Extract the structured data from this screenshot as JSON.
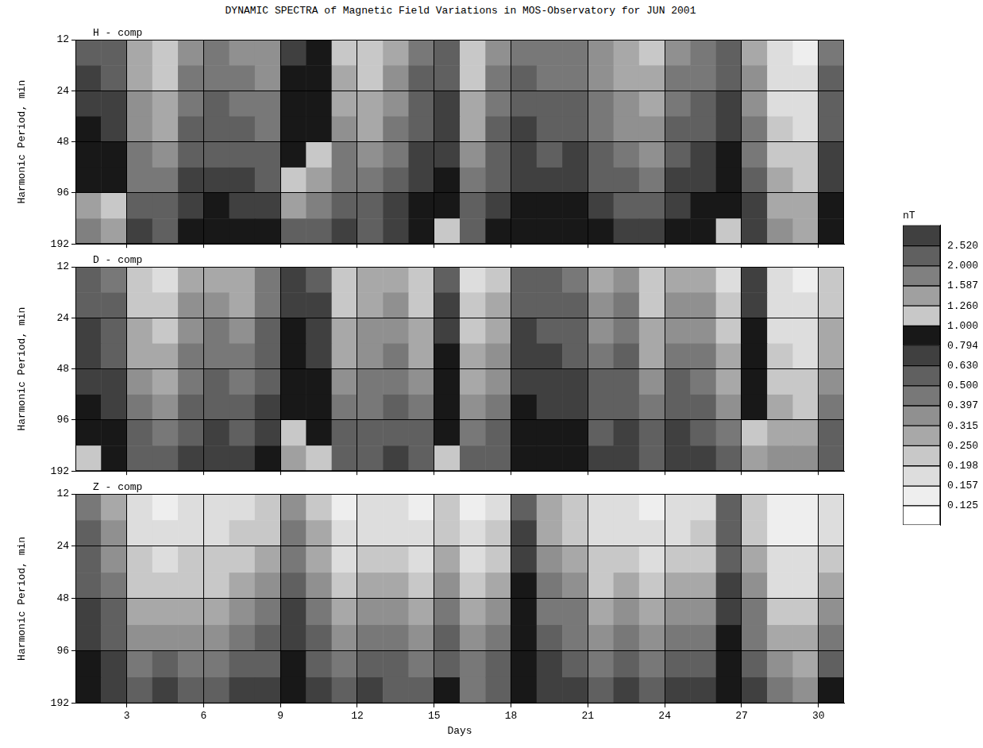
{
  "title": "DYNAMIC SPECTRA of Magnetic Field Variations in MOS-Observatory for JUN 2001",
  "chart_data": [
    {
      "type": "heatmap",
      "title": "H - comp",
      "ylabel": "Harmonic Period, min",
      "xlim": [
        1,
        31
      ],
      "xticks": [
        3,
        6,
        9,
        12,
        15,
        18,
        21,
        24,
        27,
        30
      ],
      "ylim": [
        12,
        192
      ],
      "yticks": [
        12,
        24,
        48,
        96,
        192
      ],
      "log": "y",
      "grid": true,
      "tick_labels": "y",
      "x_bins": [
        1,
        2,
        3,
        4,
        5,
        6,
        7,
        8,
        9,
        10,
        11,
        12,
        13,
        14,
        15,
        16,
        17,
        18,
        19,
        20,
        21,
        22,
        23,
        24,
        25,
        26,
        27,
        28,
        29,
        30,
        31
      ],
      "y_bins": [
        12,
        17,
        24,
        34,
        48,
        68,
        96,
        136,
        192
      ],
      "cells": [
        [
          0.62,
          0.55,
          0.25,
          0.22,
          0.35,
          0.42,
          0.38,
          0.33,
          0.72,
          0.85,
          0.24,
          0.21,
          0.3,
          0.45,
          0.52,
          0.22,
          0.36,
          0.48,
          0.4,
          0.44,
          0.32,
          0.25,
          0.23,
          0.38,
          0.42,
          0.55,
          0.3,
          0.16,
          0.15,
          0.45
        ],
        [
          0.7,
          0.6,
          0.28,
          0.24,
          0.4,
          0.45,
          0.42,
          0.36,
          0.8,
          0.9,
          0.27,
          0.23,
          0.33,
          0.5,
          0.58,
          0.24,
          0.4,
          0.52,
          0.45,
          0.48,
          0.35,
          0.28,
          0.25,
          0.42,
          0.46,
          0.6,
          0.33,
          0.17,
          0.16,
          0.5
        ],
        [
          0.78,
          0.66,
          0.32,
          0.27,
          0.46,
          0.5,
          0.47,
          0.4,
          0.88,
          0.95,
          0.3,
          0.26,
          0.37,
          0.56,
          0.64,
          0.27,
          0.45,
          0.58,
          0.5,
          0.53,
          0.4,
          0.32,
          0.28,
          0.47,
          0.52,
          0.66,
          0.37,
          0.18,
          0.17,
          0.55
        ],
        [
          0.85,
          0.72,
          0.36,
          0.3,
          0.52,
          0.56,
          0.52,
          0.45,
          0.92,
          0.98,
          0.34,
          0.3,
          0.42,
          0.62,
          0.7,
          0.3,
          0.5,
          0.64,
          0.56,
          0.6,
          0.45,
          0.36,
          0.32,
          0.52,
          0.58,
          0.72,
          0.42,
          0.2,
          0.18,
          0.6
        ],
        [
          0.92,
          0.8,
          0.42,
          0.35,
          0.58,
          0.62,
          0.6,
          0.52,
          0.96,
          1.1,
          0.4,
          0.35,
          0.48,
          0.7,
          0.78,
          0.35,
          0.56,
          0.7,
          0.62,
          0.66,
          0.52,
          0.42,
          0.38,
          0.6,
          0.65,
          0.8,
          0.48,
          0.22,
          0.2,
          0.66
        ],
        [
          0.98,
          0.88,
          0.48,
          0.42,
          0.65,
          0.7,
          0.68,
          0.6,
          1.2,
          1.3,
          0.46,
          0.42,
          0.55,
          0.78,
          0.86,
          0.42,
          0.62,
          0.78,
          0.7,
          0.74,
          0.6,
          0.5,
          0.45,
          0.68,
          0.72,
          0.88,
          0.55,
          0.26,
          0.22,
          0.72
        ],
        [
          1.4,
          1.1,
          0.58,
          0.5,
          0.74,
          0.8,
          0.76,
          0.7,
          1.5,
          1.6,
          0.55,
          0.5,
          0.64,
          0.88,
          0.95,
          0.5,
          0.72,
          0.86,
          0.8,
          0.82,
          0.7,
          0.6,
          0.55,
          0.78,
          0.82,
          0.95,
          0.65,
          0.3,
          0.26,
          0.8
        ],
        [
          1.8,
          1.5,
          0.7,
          0.62,
          0.85,
          0.92,
          0.88,
          0.82,
          2.1,
          2.3,
          0.66,
          0.6,
          0.75,
          0.96,
          1.2,
          0.6,
          0.84,
          0.95,
          0.9,
          0.92,
          0.82,
          0.7,
          0.66,
          0.88,
          0.92,
          1.1,
          0.78,
          0.38,
          0.3,
          0.9
        ]
      ]
    },
    {
      "type": "heatmap",
      "title": "D - comp",
      "ylabel": "Harmonic Period, min",
      "xlim": [
        1,
        31
      ],
      "xticks": [
        3,
        6,
        9,
        12,
        15,
        18,
        21,
        24,
        27,
        30
      ],
      "ylim": [
        12,
        192
      ],
      "yticks": [
        12,
        24,
        48,
        96,
        192
      ],
      "log": "y",
      "grid": true,
      "tick_labels": "y",
      "x_bins": [
        1,
        2,
        3,
        4,
        5,
        6,
        7,
        8,
        9,
        10,
        11,
        12,
        13,
        14,
        15,
        16,
        17,
        18,
        19,
        20,
        21,
        22,
        23,
        24,
        25,
        26,
        27,
        28,
        29,
        30,
        31
      ],
      "y_bins": [
        12,
        17,
        24,
        34,
        48,
        68,
        96,
        136,
        192
      ],
      "cells": [
        [
          0.55,
          0.45,
          0.2,
          0.18,
          0.28,
          0.3,
          0.27,
          0.4,
          0.7,
          0.6,
          0.2,
          0.25,
          0.28,
          0.2,
          0.62,
          0.18,
          0.22,
          0.55,
          0.5,
          0.45,
          0.3,
          0.35,
          0.2,
          0.3,
          0.28,
          0.18,
          0.7,
          0.16,
          0.15,
          0.2
        ],
        [
          0.6,
          0.5,
          0.22,
          0.2,
          0.32,
          0.34,
          0.3,
          0.45,
          0.76,
          0.66,
          0.22,
          0.28,
          0.32,
          0.22,
          0.7,
          0.2,
          0.25,
          0.6,
          0.55,
          0.5,
          0.34,
          0.4,
          0.22,
          0.34,
          0.32,
          0.2,
          0.78,
          0.17,
          0.16,
          0.22
        ],
        [
          0.66,
          0.56,
          0.25,
          0.22,
          0.36,
          0.4,
          0.35,
          0.5,
          0.82,
          0.72,
          0.25,
          0.32,
          0.36,
          0.25,
          0.76,
          0.22,
          0.28,
          0.66,
          0.6,
          0.56,
          0.38,
          0.45,
          0.25,
          0.38,
          0.36,
          0.22,
          0.85,
          0.18,
          0.17,
          0.25
        ],
        [
          0.72,
          0.62,
          0.3,
          0.26,
          0.42,
          0.45,
          0.4,
          0.56,
          0.88,
          0.78,
          0.3,
          0.36,
          0.42,
          0.3,
          0.82,
          0.25,
          0.32,
          0.72,
          0.66,
          0.62,
          0.44,
          0.5,
          0.3,
          0.44,
          0.42,
          0.26,
          0.9,
          0.2,
          0.18,
          0.3
        ],
        [
          0.78,
          0.68,
          0.35,
          0.3,
          0.48,
          0.5,
          0.46,
          0.62,
          0.92,
          0.84,
          0.35,
          0.42,
          0.48,
          0.35,
          0.88,
          0.3,
          0.38,
          0.78,
          0.72,
          0.68,
          0.5,
          0.56,
          0.36,
          0.5,
          0.48,
          0.3,
          0.95,
          0.22,
          0.2,
          0.35
        ],
        [
          0.85,
          0.75,
          0.42,
          0.36,
          0.55,
          0.58,
          0.52,
          0.68,
          0.96,
          0.9,
          0.42,
          0.48,
          0.55,
          0.42,
          0.92,
          0.36,
          0.45,
          0.84,
          0.78,
          0.74,
          0.56,
          0.62,
          0.42,
          0.56,
          0.55,
          0.36,
          0.98,
          0.26,
          0.22,
          0.42
        ],
        [
          0.92,
          0.82,
          0.5,
          0.45,
          0.62,
          0.65,
          0.6,
          0.75,
          1.1,
          0.95,
          0.5,
          0.55,
          0.62,
          0.5,
          0.96,
          0.42,
          0.52,
          0.9,
          0.84,
          0.8,
          0.62,
          0.7,
          0.5,
          0.64,
          0.62,
          0.45,
          1.2,
          0.3,
          0.28,
          0.5
        ],
        [
          1.2,
          0.95,
          0.6,
          0.55,
          0.7,
          0.72,
          0.68,
          0.82,
          1.3,
          1.1,
          0.6,
          0.62,
          0.7,
          0.58,
          1.1,
          0.5,
          0.6,
          0.96,
          0.92,
          0.88,
          0.7,
          0.78,
          0.58,
          0.72,
          0.7,
          0.52,
          1.4,
          0.36,
          0.32,
          0.6
        ]
      ]
    },
    {
      "type": "heatmap",
      "title": "Z - comp",
      "xlabel": "Days",
      "ylabel": "Harmonic Period, min",
      "xlim": [
        1,
        31
      ],
      "xticks": [
        3,
        6,
        9,
        12,
        15,
        18,
        21,
        24,
        27,
        30
      ],
      "ylim": [
        12,
        192
      ],
      "yticks": [
        12,
        24,
        48,
        96,
        192
      ],
      "log": "y",
      "grid": true,
      "x_bins": [
        1,
        2,
        3,
        4,
        5,
        6,
        7,
        8,
        9,
        10,
        11,
        12,
        13,
        14,
        15,
        16,
        17,
        18,
        19,
        20,
        21,
        22,
        23,
        24,
        25,
        26,
        27,
        28,
        29,
        30,
        31
      ],
      "y_bins": [
        12,
        17,
        24,
        34,
        48,
        68,
        96,
        136,
        192
      ],
      "cells": [
        [
          0.45,
          0.3,
          0.16,
          0.15,
          0.16,
          0.17,
          0.18,
          0.2,
          0.35,
          0.22,
          0.15,
          0.17,
          0.16,
          0.15,
          0.2,
          0.15,
          0.18,
          0.6,
          0.25,
          0.2,
          0.16,
          0.17,
          0.15,
          0.16,
          0.18,
          0.5,
          0.2,
          0.14,
          0.14,
          0.16
        ],
        [
          0.5,
          0.34,
          0.17,
          0.16,
          0.17,
          0.18,
          0.2,
          0.22,
          0.4,
          0.25,
          0.16,
          0.18,
          0.18,
          0.16,
          0.22,
          0.16,
          0.2,
          0.7,
          0.28,
          0.22,
          0.17,
          0.18,
          0.16,
          0.18,
          0.2,
          0.56,
          0.22,
          0.15,
          0.15,
          0.17
        ],
        [
          0.56,
          0.38,
          0.2,
          0.18,
          0.2,
          0.2,
          0.24,
          0.28,
          0.48,
          0.3,
          0.18,
          0.22,
          0.22,
          0.18,
          0.28,
          0.18,
          0.24,
          0.78,
          0.34,
          0.26,
          0.2,
          0.22,
          0.18,
          0.22,
          0.24,
          0.62,
          0.26,
          0.16,
          0.16,
          0.2
        ],
        [
          0.62,
          0.44,
          0.24,
          0.22,
          0.24,
          0.24,
          0.3,
          0.36,
          0.56,
          0.36,
          0.22,
          0.28,
          0.28,
          0.22,
          0.34,
          0.22,
          0.3,
          0.84,
          0.4,
          0.32,
          0.24,
          0.28,
          0.22,
          0.28,
          0.3,
          0.7,
          0.32,
          0.18,
          0.18,
          0.25
        ],
        [
          0.7,
          0.5,
          0.3,
          0.28,
          0.3,
          0.3,
          0.38,
          0.45,
          0.66,
          0.44,
          0.28,
          0.36,
          0.35,
          0.28,
          0.42,
          0.28,
          0.36,
          0.9,
          0.48,
          0.4,
          0.3,
          0.36,
          0.28,
          0.36,
          0.38,
          0.78,
          0.4,
          0.22,
          0.22,
          0.32
        ],
        [
          0.78,
          0.58,
          0.36,
          0.38,
          0.36,
          0.36,
          0.46,
          0.55,
          0.76,
          0.52,
          0.34,
          0.45,
          0.42,
          0.34,
          0.52,
          0.34,
          0.44,
          0.95,
          0.56,
          0.48,
          0.38,
          0.45,
          0.34,
          0.45,
          0.46,
          0.85,
          0.48,
          0.26,
          0.26,
          0.42
        ],
        [
          0.88,
          0.66,
          0.44,
          0.55,
          0.44,
          0.42,
          0.55,
          0.62,
          0.85,
          0.6,
          0.42,
          0.55,
          0.5,
          0.42,
          0.62,
          0.4,
          0.52,
          0.98,
          0.64,
          0.56,
          0.45,
          0.55,
          0.42,
          0.6,
          0.56,
          0.92,
          0.56,
          0.32,
          0.3,
          0.6
        ],
        [
          0.96,
          0.78,
          0.55,
          0.7,
          0.52,
          0.5,
          0.65,
          0.72,
          0.92,
          0.7,
          0.52,
          0.66,
          0.6,
          0.5,
          0.8,
          0.48,
          0.6,
          0.98,
          0.72,
          0.65,
          0.55,
          0.66,
          0.5,
          0.72,
          0.65,
          0.96,
          0.66,
          0.4,
          0.36,
          0.82
        ]
      ]
    }
  ],
  "colorbar": {
    "label": "nT",
    "log": true,
    "range": [
      0.1,
      3.2
    ],
    "ticks": [
      0.125,
      0.157,
      0.198,
      {
        "value": 0.25,
        "label": "0.250"
      },
      0.315,
      0.397,
      {
        "value": 0.5,
        "label": "0.500"
      },
      {
        "value": 0.63,
        "label": "0.630"
      },
      0.794,
      {
        "value": 1,
        "label": "1.000"
      },
      {
        "value": 1.26,
        "label": "1.260"
      },
      1.587,
      {
        "value": 2,
        "label": "2.000"
      },
      {
        "value": 2.52,
        "label": "2.520"
      }
    ],
    "colors": [
      "#ffffff",
      "#eeeeee",
      "#dddddd",
      "#c8c8c8",
      "#a8a8a8",
      "#909090",
      "#787878",
      "#606060",
      "#404040",
      "#181818",
      "#c8c8c8",
      "#a0a0a0",
      "#808080",
      "#606060",
      "#404040"
    ]
  }
}
